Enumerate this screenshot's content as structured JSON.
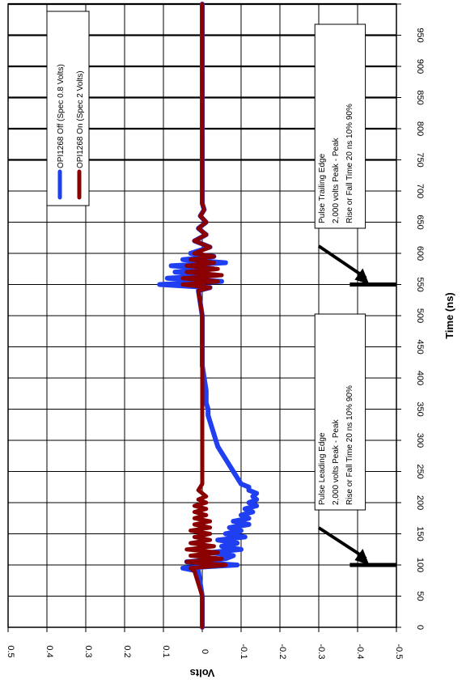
{
  "chart_data": {
    "type": "line",
    "orientation": "rotated-90-clockwise",
    "xlabel": "Time (ns)",
    "ylabel": "Volts",
    "xlim": [
      0,
      1000
    ],
    "ylim": [
      -0.5,
      0.5
    ],
    "x_ticks": [
      "0",
      "50",
      "100",
      "150",
      "200",
      "250",
      "300",
      "350",
      "400",
      "450",
      "500",
      "550",
      "600",
      "650",
      "700",
      "750",
      "800",
      "850",
      "900",
      "950"
    ],
    "y_ticks": [
      "0.5",
      "0.4",
      "0.3",
      "0.2",
      "0.1",
      "0",
      "-0.1",
      "-0.2",
      "-0.3",
      "-0.4",
      "-0.5"
    ],
    "grid": true,
    "legend_position": "top-left",
    "series": [
      {
        "name": "OPI1268 Off  (Spec 0.8 Volts)",
        "color": "#1f3ff0",
        "x": [
          0,
          50,
          90,
          95,
          100,
          105,
          110,
          115,
          120,
          125,
          130,
          135,
          140,
          145,
          150,
          155,
          160,
          165,
          170,
          175,
          180,
          185,
          190,
          195,
          200,
          205,
          210,
          215,
          220,
          225,
          230,
          240,
          250,
          260,
          270,
          280,
          290,
          300,
          310,
          320,
          330,
          340,
          350,
          360,
          380,
          400,
          420,
          450,
          500,
          540,
          545,
          550,
          555,
          560,
          565,
          570,
          575,
          580,
          585,
          590,
          595,
          600,
          610,
          620,
          630,
          640,
          650,
          660,
          670,
          680,
          700,
          750,
          800,
          850,
          900,
          950,
          1000
        ],
        "y": [
          0,
          0,
          0.01,
          0.05,
          -0.09,
          0.04,
          -0.06,
          -0.08,
          -0.02,
          -0.1,
          -0.05,
          -0.09,
          -0.04,
          -0.11,
          -0.06,
          -0.1,
          -0.07,
          -0.12,
          -0.08,
          -0.12,
          -0.1,
          -0.13,
          -0.11,
          -0.14,
          -0.12,
          -0.14,
          -0.13,
          -0.14,
          -0.12,
          -0.12,
          -0.1,
          -0.09,
          -0.08,
          -0.07,
          -0.06,
          -0.05,
          -0.04,
          -0.035,
          -0.03,
          -0.025,
          -0.02,
          -0.015,
          -0.015,
          -0.01,
          -0.01,
          -0.005,
          0,
          0,
          0,
          0.01,
          -0.02,
          0.11,
          -0.05,
          0.09,
          -0.04,
          0.07,
          -0.03,
          0.08,
          -0.06,
          0.05,
          -0.03,
          0.03,
          -0.02,
          0.02,
          -0.01,
          0.01,
          -0.01,
          0.005,
          -0.005,
          0,
          0,
          0,
          0,
          0,
          0,
          0,
          0
        ]
      },
      {
        "name": "OPI1268 On  (Spec 2 Volts)",
        "color": "#8b0000",
        "x": [
          0,
          50,
          90,
          95,
          100,
          105,
          110,
          115,
          120,
          125,
          130,
          135,
          140,
          145,
          150,
          155,
          160,
          165,
          170,
          175,
          180,
          185,
          190,
          195,
          200,
          205,
          210,
          220,
          230,
          250,
          300,
          350,
          400,
          450,
          500,
          540,
          545,
          550,
          555,
          560,
          565,
          570,
          575,
          580,
          585,
          590,
          595,
          600,
          610,
          620,
          630,
          640,
          650,
          660,
          670,
          680,
          700,
          750,
          800,
          850,
          900,
          950,
          1000
        ],
        "y": [
          0,
          0,
          0.02,
          0.03,
          -0.06,
          0.04,
          -0.05,
          0.03,
          -0.04,
          0.04,
          -0.03,
          0.03,
          -0.02,
          0.02,
          -0.02,
          0.03,
          -0.02,
          0.02,
          -0.02,
          0.02,
          -0.01,
          0.02,
          -0.01,
          0.02,
          -0.01,
          0.01,
          -0.01,
          0.01,
          0,
          0,
          0,
          0,
          0,
          0,
          0,
          0.01,
          -0.02,
          0.05,
          -0.04,
          0.05,
          -0.05,
          0.04,
          -0.04,
          0.04,
          -0.03,
          0.03,
          -0.03,
          0.02,
          -0.02,
          0.02,
          -0.01,
          0.01,
          -0.01,
          0.005,
          -0.005,
          0,
          0,
          0,
          0,
          0,
          0,
          0,
          0
        ]
      }
    ],
    "annotations": [
      {
        "lines": [
          "Pulse Leading Edge",
          "2,000 volts Peak - Peak",
          "Rise or Fall Time 20 ns 10% 90%"
        ],
        "arrow_target_x": 100,
        "arrow_target_y": -0.47
      },
      {
        "lines": [
          "Pulse Trailing Edge",
          "2,000 volts Peak - Peak",
          "Rise or Fall Time 20 ns 10% 90%"
        ],
        "arrow_target_x": 550,
        "arrow_target_y": -0.47
      }
    ]
  }
}
